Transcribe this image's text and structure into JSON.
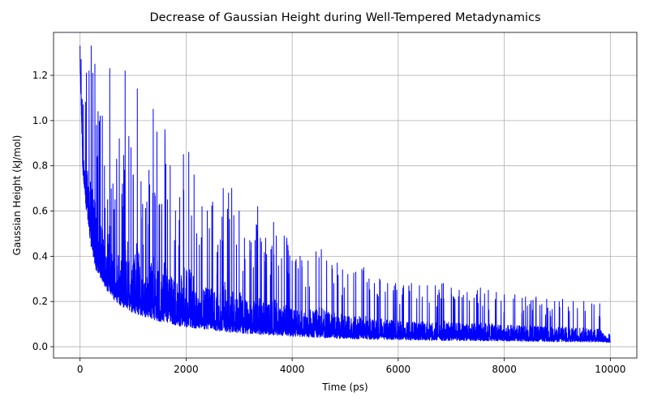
{
  "chart_data": {
    "type": "line",
    "title": "Decrease of Gaussian Height during Well-Tempered Metadynamics",
    "xlabel": "Time (ps)",
    "ylabel": "Gaussian Height (kJ/mol)",
    "xlim": [
      -500,
      10500
    ],
    "ylim": [
      -0.05,
      1.39
    ],
    "xticks": [
      0,
      2000,
      4000,
      6000,
      8000,
      10000
    ],
    "xtick_labels": [
      "0",
      "2000",
      "4000",
      "6000",
      "8000",
      "10000"
    ],
    "yticks": [
      0.0,
      0.2,
      0.4,
      0.6,
      0.8,
      1.0,
      1.2
    ],
    "ytick_labels": [
      "0.0",
      "0.2",
      "0.4",
      "0.6",
      "0.8",
      "1.0",
      "1.2"
    ],
    "grid": true,
    "legend": "none",
    "series": [
      {
        "color": "#0000ff",
        "x_range": [
          0,
          10000
        ],
        "baseline": {
          "x": [
            0,
            50,
            100,
            200,
            300,
            500,
            700,
            1000,
            1500,
            2000,
            3000,
            4000,
            5000,
            6000,
            7000,
            8000,
            9000,
            10000
          ],
          "y": [
            1.25,
            0.78,
            0.62,
            0.45,
            0.34,
            0.25,
            0.19,
            0.15,
            0.11,
            0.085,
            0.06,
            0.045,
            0.035,
            0.03,
            0.027,
            0.025,
            0.022,
            0.02
          ]
        },
        "peaks": {
          "x": [
            0,
            20,
            60,
            120,
            170,
            210,
            240,
            280,
            310,
            340,
            380,
            420,
            460,
            520,
            560,
            620,
            660,
            690,
            740,
            800,
            850,
            920,
            960,
            1000,
            1080,
            1150,
            1180,
            1260,
            1300,
            1380,
            1450,
            1500,
            1540,
            1600,
            1650,
            1700,
            1800,
            1880,
            1950,
            2050,
            2150,
            2200,
            2250,
            2300,
            2400,
            2500,
            2600,
            2700,
            2800,
            2860,
            2900,
            2950,
            3000,
            3100,
            3200,
            3300,
            3350,
            3400,
            3500,
            3600,
            3650,
            3700,
            3800,
            3850,
            3900,
            4000,
            4150,
            4300,
            4450,
            4550,
            4650,
            4750,
            4850,
            4950,
            5050,
            5200,
            5350,
            5450,
            5550,
            5650,
            5800,
            5950,
            6100,
            6250,
            6400,
            6550,
            6700,
            6850,
            7000,
            7150,
            7300,
            7550,
            7700,
            7850,
            8000,
            8200,
            8400,
            8600,
            8800,
            8950,
            9100,
            9300,
            9500,
            9650,
            9800,
            9990
          ],
          "y": [
            1.33,
            1.27,
            1.07,
            1.21,
            1.22,
            1.33,
            1.21,
            1.25,
            0.98,
            1.04,
            1.02,
            1.02,
            0.8,
            0.65,
            1.23,
            0.72,
            0.65,
            0.83,
            0.92,
            0.72,
            1.22,
            0.93,
            0.88,
            0.76,
            1.14,
            0.73,
            0.63,
            0.64,
            0.78,
            1.05,
            0.95,
            0.63,
            0.63,
            0.96,
            0.65,
            0.8,
            0.6,
            0.66,
            0.85,
            0.86,
            0.76,
            0.5,
            0.45,
            0.62,
            0.6,
            0.64,
            0.45,
            0.7,
            0.68,
            0.7,
            0.58,
            0.45,
            0.6,
            0.48,
            0.47,
            0.47,
            0.62,
            0.48,
            0.48,
            0.43,
            0.55,
            0.49,
            0.39,
            0.49,
            0.48,
            0.38,
            0.4,
            0.38,
            0.42,
            0.43,
            0.38,
            0.36,
            0.37,
            0.34,
            0.32,
            0.33,
            0.35,
            0.3,
            0.28,
            0.3,
            0.28,
            0.28,
            0.27,
            0.28,
            0.27,
            0.27,
            0.27,
            0.28,
            0.26,
            0.25,
            0.24,
            0.26,
            0.25,
            0.24,
            0.23,
            0.23,
            0.22,
            0.22,
            0.21,
            0.2,
            0.21,
            0.2,
            0.2,
            0.19,
            0.19,
            0.05
          ]
        }
      }
    ]
  }
}
